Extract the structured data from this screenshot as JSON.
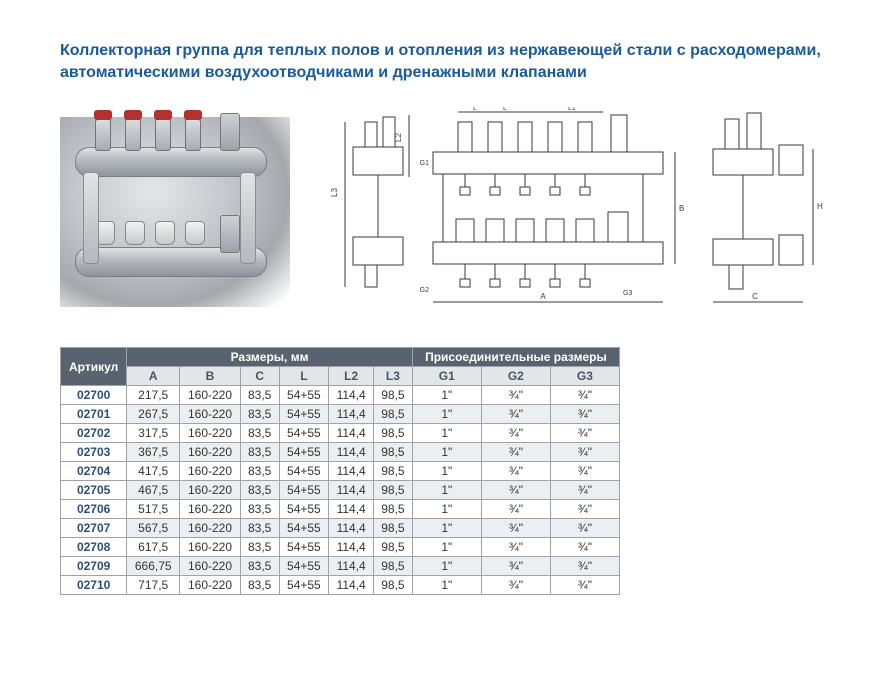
{
  "title": "Коллекторная группа для теплых полов и отопления из нержавеющей стали с расходомерами, автоматическими воздухоотводчиками и дренажными клапанами",
  "colors": {
    "title_color": "#1a5a9a",
    "thead_bg": "#58636f",
    "thead_fg": "#ffffff",
    "subhead_bg": "#e3e6e9",
    "subhead_fg": "#4a5560",
    "row_odd_bg": "#ffffff",
    "row_even_bg": "#eceff1",
    "border": "#9fa3a7",
    "article_fg": "#2c4e7a",
    "drawing_stroke": "#3a3a3a"
  },
  "fonts": {
    "title_size_pt": 12,
    "table_size_pt": 9,
    "family": "Arial"
  },
  "diagram_labels": {
    "L": "L",
    "L1": "L1",
    "L2": "L2",
    "L3": "L3",
    "A": "A",
    "B": "B",
    "C": "C",
    "G1": "G1",
    "G2": "G2",
    "G3": "G3",
    "H": "H"
  },
  "table": {
    "headers": {
      "article": "Артикул",
      "sizes": "Размеры, мм",
      "connections": "Присоединительные размеры"
    },
    "subheaders": [
      "A",
      "B",
      "C",
      "L",
      "L2",
      "L3",
      "G1",
      "G2",
      "G3"
    ],
    "rows": [
      {
        "art": "02700",
        "A": "217,5",
        "B": "160-220",
        "C": "83,5",
        "L": "54+55",
        "L2": "114,4",
        "L3": "98,5",
        "G1": "1\"",
        "G2": "¾\"",
        "G3": "¾\""
      },
      {
        "art": "02701",
        "A": "267,5",
        "B": "160-220",
        "C": "83,5",
        "L": "54+55",
        "L2": "114,4",
        "L3": "98,5",
        "G1": "1\"",
        "G2": "¾\"",
        "G3": "¾\""
      },
      {
        "art": "02702",
        "A": "317,5",
        "B": "160-220",
        "C": "83,5",
        "L": "54+55",
        "L2": "114,4",
        "L3": "98,5",
        "G1": "1\"",
        "G2": "¾\"",
        "G3": "¾\""
      },
      {
        "art": "02703",
        "A": "367,5",
        "B": "160-220",
        "C": "83,5",
        "L": "54+55",
        "L2": "114,4",
        "L3": "98,5",
        "G1": "1\"",
        "G2": "¾\"",
        "G3": "¾\""
      },
      {
        "art": "02704",
        "A": "417,5",
        "B": "160-220",
        "C": "83,5",
        "L": "54+55",
        "L2": "114,4",
        "L3": "98,5",
        "G1": "1\"",
        "G2": "¾\"",
        "G3": "¾\""
      },
      {
        "art": "02705",
        "A": "467,5",
        "B": "160-220",
        "C": "83,5",
        "L": "54+55",
        "L2": "114,4",
        "L3": "98,5",
        "G1": "1\"",
        "G2": "¾\"",
        "G3": "¾\""
      },
      {
        "art": "02706",
        "A": "517,5",
        "B": "160-220",
        "C": "83,5",
        "L": "54+55",
        "L2": "114,4",
        "L3": "98,5",
        "G1": "1\"",
        "G2": "¾\"",
        "G3": "¾\""
      },
      {
        "art": "02707",
        "A": "567,5",
        "B": "160-220",
        "C": "83,5",
        "L": "54+55",
        "L2": "114,4",
        "L3": "98,5",
        "G1": "1\"",
        "G2": "¾\"",
        "G3": "¾\""
      },
      {
        "art": "02708",
        "A": "617,5",
        "B": "160-220",
        "C": "83,5",
        "L": "54+55",
        "L2": "114,4",
        "L3": "98,5",
        "G1": "1\"",
        "G2": "¾\"",
        "G3": "¾\""
      },
      {
        "art": "02709",
        "A": "666,75",
        "B": "160-220",
        "C": "83,5",
        "L": "54+55",
        "L2": "114,4",
        "L3": "98,5",
        "G1": "1\"",
        "G2": "¾\"",
        "G3": "¾\""
      },
      {
        "art": "02710",
        "A": "717,5",
        "B": "160-220",
        "C": "83,5",
        "L": "54+55",
        "L2": "114,4",
        "L3": "98,5",
        "G1": "1\"",
        "G2": "¾\"",
        "G3": "¾\""
      }
    ]
  }
}
